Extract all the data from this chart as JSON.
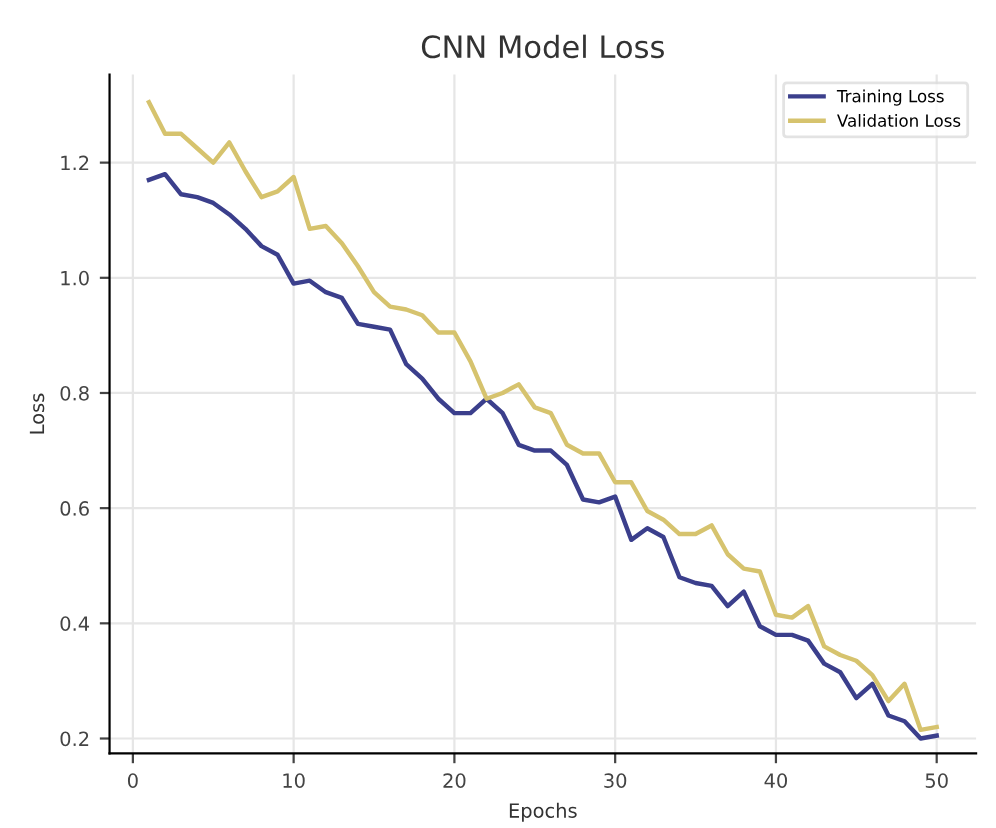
{
  "chart_data": {
    "type": "line",
    "title": "CNN Model Loss",
    "xlabel": "Epochs",
    "ylabel": "Loss",
    "x": [
      1,
      2,
      3,
      4,
      5,
      6,
      7,
      8,
      9,
      10,
      11,
      12,
      13,
      14,
      15,
      16,
      17,
      18,
      19,
      20,
      21,
      22,
      23,
      24,
      25,
      26,
      27,
      28,
      29,
      30,
      31,
      32,
      33,
      34,
      35,
      36,
      37,
      38,
      39,
      40,
      41,
      42,
      43,
      44,
      45,
      46,
      47,
      48,
      49,
      50
    ],
    "series": [
      {
        "name": "Training Loss",
        "color": "#3b3f8c",
        "values": [
          1.17,
          1.18,
          1.145,
          1.14,
          1.13,
          1.11,
          1.085,
          1.055,
          1.04,
          0.99,
          0.995,
          0.975,
          0.965,
          0.92,
          0.915,
          0.91,
          0.85,
          0.825,
          0.79,
          0.765,
          0.765,
          0.79,
          0.765,
          0.71,
          0.7,
          0.7,
          0.675,
          0.615,
          0.61,
          0.62,
          0.545,
          0.565,
          0.55,
          0.48,
          0.47,
          0.465,
          0.43,
          0.455,
          0.395,
          0.38,
          0.38,
          0.37,
          0.33,
          0.315,
          0.27,
          0.295,
          0.24,
          0.23,
          0.2,
          0.205
        ]
      },
      {
        "name": "Validation Loss",
        "color": "#d6c36e",
        "values": [
          1.305,
          1.25,
          1.25,
          1.225,
          1.2,
          1.235,
          1.185,
          1.14,
          1.15,
          1.175,
          1.085,
          1.09,
          1.06,
          1.02,
          0.975,
          0.95,
          0.945,
          0.935,
          0.905,
          0.905,
          0.855,
          0.79,
          0.8,
          0.815,
          0.775,
          0.765,
          0.71,
          0.695,
          0.695,
          0.645,
          0.645,
          0.595,
          0.58,
          0.555,
          0.555,
          0.57,
          0.52,
          0.495,
          0.49,
          0.415,
          0.41,
          0.43,
          0.36,
          0.345,
          0.335,
          0.31,
          0.265,
          0.295,
          0.215,
          0.22
        ]
      }
    ],
    "xlim": [
      -1.45,
      52.45
    ],
    "ylim": [
      0.174,
      1.353
    ],
    "xticks": [
      0,
      10,
      20,
      30,
      40,
      50
    ],
    "yticks": [
      0.2,
      0.4,
      0.6,
      0.8,
      {
        "value": 1.0,
        "label": "1.0"
      },
      1.2
    ],
    "grid": true,
    "legend": "top right",
    "marker": "none",
    "line_style": "solid"
  }
}
